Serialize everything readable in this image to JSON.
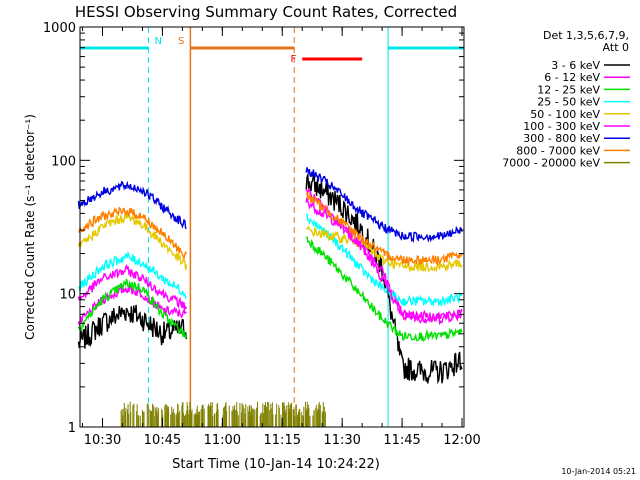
{
  "chart_data": {
    "type": "line",
    "title": "HESSI Observing Summary Count Rates, Corrected",
    "xlabel": "Start Time (10-Jan-14 10:24:22)",
    "ylabel": "Corrected Count Rate (s⁻¹ detector⁻¹)",
    "yscale": "log",
    "ylim": [
      1,
      1000
    ],
    "xlim": [
      "10:24:22",
      "12:00:30"
    ],
    "x_ticks": [
      "10:30",
      "10:45",
      "11:00",
      "11:15",
      "11:30",
      "11:45",
      "12:00"
    ],
    "y_ticks": [
      "1",
      "10",
      "100",
      "1000"
    ],
    "legend_title": [
      "Det 1,3,5,6,7,9,",
      "Att 0"
    ],
    "legend_position": "right",
    "footer": "10-Jan-2014 05:21",
    "segments": [
      {
        "label": "N",
        "color": "#00e5e5",
        "start": "10:24:22",
        "end": "10:41:30",
        "type": "night"
      },
      {
        "label": "S",
        "color": "#e5731a",
        "start": "10:52:00",
        "end": "11:18:00",
        "type": "saa"
      },
      {
        "label": "F",
        "color": "#ff0000",
        "start": "11:20:00",
        "end": "11:35:00",
        "type": "flare"
      },
      {
        "label": "",
        "color": "#00e5e5",
        "start": "11:41:30",
        "end": "12:00:30",
        "type": "night"
      }
    ],
    "series": [
      {
        "name": "3 - 6 keV",
        "color": "#000000",
        "x": [
          "10:24",
          "10:30",
          "10:36",
          "10:40",
          "10:45",
          "10:51",
          "11:21",
          "11:25",
          "11:30",
          "11:35",
          "11:40",
          "11:45",
          "11:50",
          "11:55",
          "12:00"
        ],
        "y": [
          4.2,
          6,
          7.5,
          6.5,
          5,
          5.5,
          70,
          60,
          45,
          30,
          16,
          2.8,
          2.6,
          2.6,
          3.2
        ]
      },
      {
        "name": "6 - 12 keV",
        "color": "#ff00ff",
        "x": [
          "10:24",
          "10:30",
          "10:36",
          "10:40",
          "10:45",
          "10:51",
          "11:21",
          "11:25",
          "11:30",
          "11:35",
          "11:40",
          "11:45",
          "11:50",
          "11:55",
          "12:00"
        ],
        "y": [
          6,
          9,
          11,
          10,
          7.5,
          7,
          50,
          40,
          32,
          24,
          15,
          7,
          6.5,
          6.5,
          7
        ]
      },
      {
        "name": "12 - 25 keV",
        "color": "#00e000",
        "x": [
          "10:24",
          "10:30",
          "10:36",
          "10:40",
          "10:45",
          "10:51",
          "11:21",
          "11:25",
          "11:30",
          "11:35",
          "11:40",
          "11:45",
          "11:50",
          "11:55",
          "12:00"
        ],
        "y": [
          5.5,
          9,
          12,
          11,
          7,
          4.8,
          26,
          20,
          14,
          9.5,
          6.5,
          4.8,
          4.8,
          4.8,
          5.2
        ]
      },
      {
        "name": "25 - 50 keV",
        "color": "#00ffff",
        "x": [
          "10:24",
          "10:30",
          "10:36",
          "10:40",
          "10:45",
          "10:51",
          "11:21",
          "11:25",
          "11:30",
          "11:35",
          "11:40",
          "11:45",
          "11:50",
          "11:55",
          "12:00"
        ],
        "y": [
          11,
          16,
          19,
          17,
          13,
          10,
          38,
          30,
          22,
          15,
          11,
          8.8,
          8.8,
          8.8,
          9.5
        ]
      },
      {
        "name": "50 - 100 keV",
        "color": "#e6c800",
        "x": [
          "10:24",
          "10:30",
          "10:36",
          "10:40",
          "10:45",
          "10:51",
          "11:21",
          "11:25",
          "11:30",
          "11:35",
          "11:40",
          "11:45",
          "11:50",
          "11:55",
          "12:00"
        ],
        "y": [
          22,
          32,
          38,
          33,
          24,
          16,
          30,
          28,
          26,
          24,
          18,
          16,
          16,
          16,
          17
        ]
      },
      {
        "name": "100 - 300 keV",
        "color": "#ff00ff",
        "x": [
          "10:24",
          "10:30",
          "10:36",
          "10:40",
          "10:45",
          "10:51",
          "11:21",
          "11:25",
          "11:30",
          "11:35",
          "11:40",
          "11:45",
          "11:50",
          "11:55",
          "12:00"
        ],
        "y": [
          9,
          13,
          15,
          13,
          10,
          8,
          60,
          45,
          32,
          22,
          13,
          7,
          6.8,
          6.8,
          7.2
        ]
      },
      {
        "name": "300 - 800 keV",
        "color": "#0000e0",
        "x": [
          "10:24",
          "10:30",
          "10:36",
          "10:40",
          "10:45",
          "10:51",
          "11:21",
          "11:25",
          "11:30",
          "11:35",
          "11:40",
          "11:45",
          "11:50",
          "11:55",
          "12:00"
        ],
        "y": [
          46,
          58,
          65,
          60,
          45,
          32,
          85,
          72,
          55,
          40,
          32,
          27,
          27,
          27,
          30
        ]
      },
      {
        "name": "800 - 7000 keV",
        "color": "#ff8000",
        "x": [
          "10:24",
          "10:30",
          "10:36",
          "10:40",
          "10:45",
          "10:51",
          "11:21",
          "11:25",
          "11:30",
          "11:35",
          "11:40",
          "11:45",
          "11:50",
          "11:55",
          "12:00"
        ],
        "y": [
          30,
          38,
          42,
          38,
          28,
          19,
          55,
          45,
          34,
          26,
          20,
          18,
          18,
          18,
          20
        ]
      },
      {
        "name": "7000 - 20000 keV",
        "color": "#808000",
        "x": [
          "10:34",
          "10:36",
          "10:38",
          "10:40",
          "11:21",
          "11:22",
          "11:23",
          "11:24",
          "11:25",
          "11:26"
        ],
        "y": [
          1.3,
          1.4,
          1.35,
          1.3,
          1.35,
          1.4,
          1.35,
          1.4,
          1.3,
          1.35
        ],
        "style": "sticks",
        "baseline": 1
      }
    ]
  }
}
